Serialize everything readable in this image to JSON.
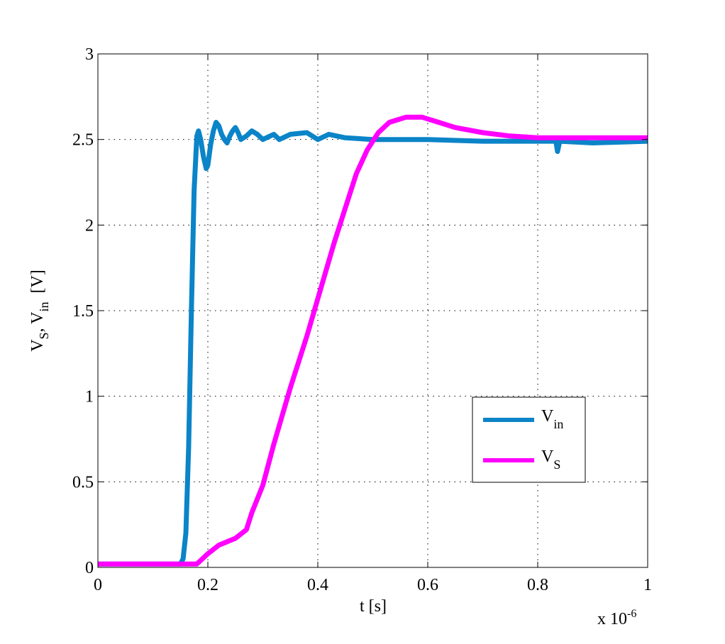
{
  "chart_data": {
    "type": "line",
    "xlabel": "t [s]",
    "x_multiplier": "x 10",
    "x_multiplier_exp": "-6",
    "ylabel": {
      "main1": "V",
      "sub1": "S",
      "sep": ", V",
      "sub2": "in",
      "unit": "  [V]"
    },
    "xlim": [
      0,
      1
    ],
    "ylim": [
      0,
      3
    ],
    "xticks": [
      "0",
      "0.2",
      "0.4",
      "0.6",
      "0.8",
      "1"
    ],
    "xtick_values": [
      0,
      0.2,
      0.4,
      0.6,
      0.8,
      1
    ],
    "yticks": [
      "0",
      "0.5",
      "1",
      "1.5",
      "2",
      "2.5",
      "3"
    ],
    "ytick_values": [
      0,
      0.5,
      1,
      1.5,
      2,
      2.5,
      3
    ],
    "grid": true,
    "legend_placement": "lower-right",
    "series": [
      {
        "name": "V_in",
        "label_main": "V",
        "label_sub": "in",
        "color": "#0b84c8",
        "x": [
          0,
          0.15,
          0.155,
          0.16,
          0.165,
          0.17,
          0.175,
          0.18,
          0.183,
          0.187,
          0.192,
          0.197,
          0.2,
          0.205,
          0.21,
          0.215,
          0.22,
          0.225,
          0.23,
          0.235,
          0.24,
          0.245,
          0.25,
          0.255,
          0.26,
          0.27,
          0.28,
          0.29,
          0.3,
          0.32,
          0.33,
          0.35,
          0.38,
          0.4,
          0.42,
          0.45,
          0.5,
          0.6,
          0.7,
          0.8,
          0.833,
          0.836,
          0.84,
          0.9,
          1
        ],
        "y": [
          0.02,
          0.02,
          0.05,
          0.2,
          0.7,
          1.5,
          2.2,
          2.52,
          2.55,
          2.5,
          2.4,
          2.33,
          2.35,
          2.47,
          2.55,
          2.6,
          2.58,
          2.53,
          2.5,
          2.48,
          2.52,
          2.55,
          2.57,
          2.54,
          2.5,
          2.52,
          2.55,
          2.53,
          2.5,
          2.53,
          2.5,
          2.53,
          2.54,
          2.5,
          2.53,
          2.51,
          2.5,
          2.5,
          2.49,
          2.49,
          2.49,
          2.43,
          2.49,
          2.48,
          2.49
        ]
      },
      {
        "name": "V_S",
        "label_main": "V",
        "label_sub": "S",
        "color": "#ff00ff",
        "x": [
          0,
          0.18,
          0.2,
          0.22,
          0.25,
          0.27,
          0.28,
          0.3,
          0.32,
          0.35,
          0.38,
          0.4,
          0.43,
          0.45,
          0.47,
          0.49,
          0.51,
          0.53,
          0.56,
          0.59,
          0.62,
          0.65,
          0.7,
          0.75,
          0.8,
          1
        ],
        "y": [
          0.02,
          0.02,
          0.08,
          0.13,
          0.17,
          0.22,
          0.32,
          0.48,
          0.72,
          1.05,
          1.35,
          1.57,
          1.9,
          2.1,
          2.3,
          2.44,
          2.54,
          2.6,
          2.63,
          2.63,
          2.6,
          2.57,
          2.54,
          2.52,
          2.51,
          2.51
        ]
      }
    ]
  }
}
